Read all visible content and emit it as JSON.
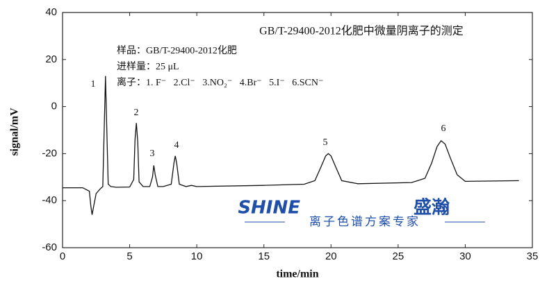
{
  "chart_data": {
    "type": "line",
    "title": "GB/T-29400-2012化肥中微量阴离子的测定",
    "notes": [
      "样品：GB/T-29400-2012化肥",
      "进样量：25 μL",
      "离子：1. F⁻   2.Cl⁻   3.NO₂⁻   4.Br⁻   5.I⁻   6.SCN⁻"
    ],
    "peak_labels": [
      "1",
      "2",
      "3",
      "4",
      "5",
      "6"
    ],
    "logo": {
      "brand": "SHINE",
      "brand_cn": "盛瀚",
      "slogan": "离子色谱方案专家"
    },
    "xlabel": "time/min",
    "ylabel": "signal/mV",
    "x": [
      0,
      1.5,
      2.0,
      2.1,
      2.2,
      2.3,
      2.5,
      2.8,
      3.0,
      3.1,
      3.2,
      3.3,
      3.4,
      3.6,
      4,
      5,
      5.3,
      5.4,
      5.5,
      5.6,
      5.7,
      6,
      6.5,
      6.7,
      6.8,
      6.9,
      7.1,
      7.5,
      8.1,
      8.3,
      8.4,
      8.5,
      8.7,
      9.2,
      9.6,
      10,
      15,
      18,
      18.8,
      19.3,
      19.6,
      19.8,
      20,
      20.3,
      20.8,
      22,
      26,
      27,
      27.5,
      27.9,
      28.2,
      28.5,
      28.9,
      29.4,
      30,
      34
    ],
    "series": [
      {
        "color": "#111111",
        "values": [
          -34.5,
          -34.5,
          -36,
          -42,
          -46,
          -43,
          -37,
          -35,
          -34,
          -10,
          13,
          -10,
          -33,
          -34,
          -34.3,
          -34.2,
          -31,
          -14,
          -7,
          -15,
          -32,
          -34,
          -34,
          -30,
          -25,
          -29,
          -34,
          -34,
          -33,
          -24,
          -21,
          -24,
          -33,
          -34,
          -33.5,
          -34,
          -33.5,
          -33,
          -31.5,
          -25,
          -21,
          -20,
          -21,
          -25,
          -31.5,
          -32.8,
          -32.3,
          -30.5,
          -24,
          -17,
          -14.5,
          -16,
          -22,
          -29,
          -31.8,
          -31.5
        ]
      }
    ],
    "xlim": [
      0,
      35
    ],
    "xticks": [
      0,
      5,
      10,
      15,
      20,
      25,
      30,
      35
    ],
    "ylim": [
      -60,
      40
    ],
    "yticks": [
      -60,
      -40,
      -20,
      0,
      20,
      40
    ]
  }
}
